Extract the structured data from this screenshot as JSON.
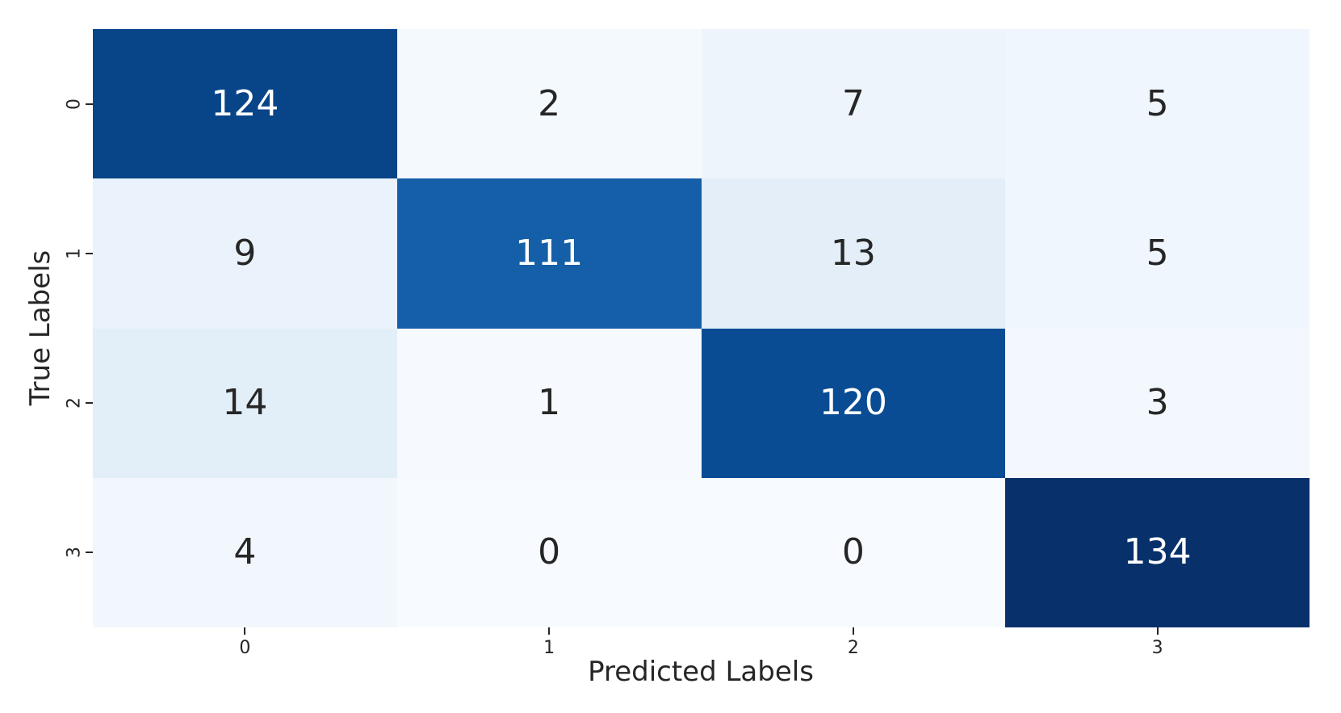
{
  "figure": {
    "background": "#ffffff",
    "text_color": "#262626"
  },
  "chart_data": {
    "type": "heatmap",
    "title": "",
    "xlabel": "Predicted Labels",
    "ylabel": "True Labels",
    "x_ticklabels": [
      "0",
      "1",
      "2",
      "3"
    ],
    "y_ticklabels": [
      "0",
      "1",
      "2",
      "3"
    ],
    "matrix": [
      [
        124,
        2,
        7,
        5
      ],
      [
        9,
        111,
        13,
        5
      ],
      [
        14,
        1,
        120,
        3
      ],
      [
        4,
        0,
        0,
        134
      ]
    ],
    "vmin": 0,
    "vmax": 134,
    "colormap": "Blues",
    "cell_colors": [
      [
        "#084488",
        "#f4f9fe",
        "#edf4fc",
        "#f0f6fd"
      ],
      [
        "#eaf2fb",
        "#145fa7",
        "#e3eef8",
        "#f0f6fd"
      ],
      [
        "#e2eef8",
        "#f6fafe",
        "#094c93",
        "#f2f8fe"
      ],
      [
        "#f1f7fd",
        "#f7fbff",
        "#f7fbff",
        "#08306b"
      ]
    ],
    "cell_text_colors": [
      [
        "#ffffff",
        "#262626",
        "#262626",
        "#262626"
      ],
      [
        "#262626",
        "#ffffff",
        "#262626",
        "#262626"
      ],
      [
        "#262626",
        "#262626",
        "#ffffff",
        "#262626"
      ],
      [
        "#262626",
        "#262626",
        "#262626",
        "#ffffff"
      ]
    ],
    "legend": "none",
    "grid": false
  }
}
